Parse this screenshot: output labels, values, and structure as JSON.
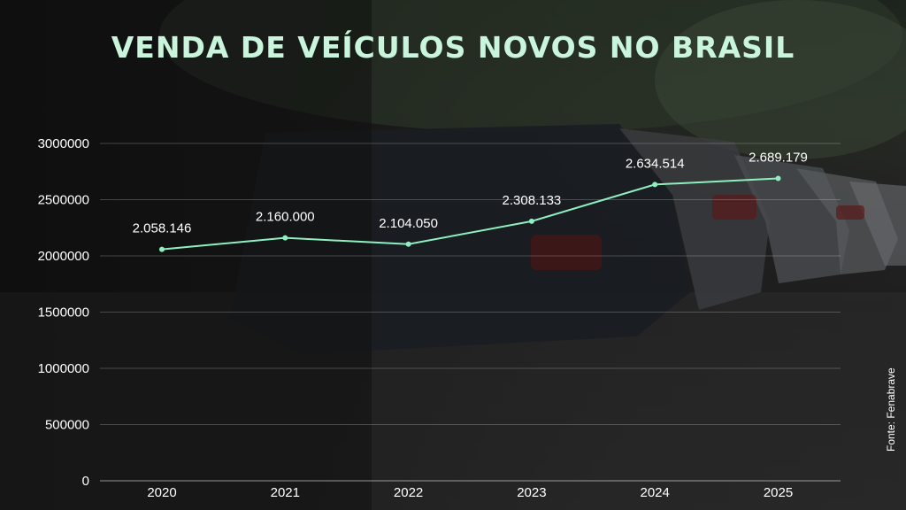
{
  "chart_data": {
    "type": "line",
    "title": "VENDA DE VEÍCULOS NOVOS NO BRASIL",
    "categories": [
      "2020",
      "2021",
      "2022",
      "2023",
      "2024",
      "2025"
    ],
    "values": [
      2058146,
      2160000,
      2104050,
      2308133,
      2634514,
      2689179
    ],
    "data_labels": [
      "2.058.146",
      "2.160.000",
      "2.104.050",
      "2.308.133",
      "2.634.514",
      "2.689.179"
    ],
    "ylim": [
      0,
      3000000
    ],
    "yticks": [
      0,
      500000,
      1000000,
      1500000,
      2000000,
      2500000,
      3000000
    ],
    "ytick_labels": [
      "0",
      "500000",
      "1000000",
      "1500000",
      "2000000",
      "2500000",
      "3000000"
    ],
    "grid": true,
    "line_color": "#8ef0c0",
    "title_color": "#c9f5dc"
  },
  "source": "Fonte: Fenabrave"
}
